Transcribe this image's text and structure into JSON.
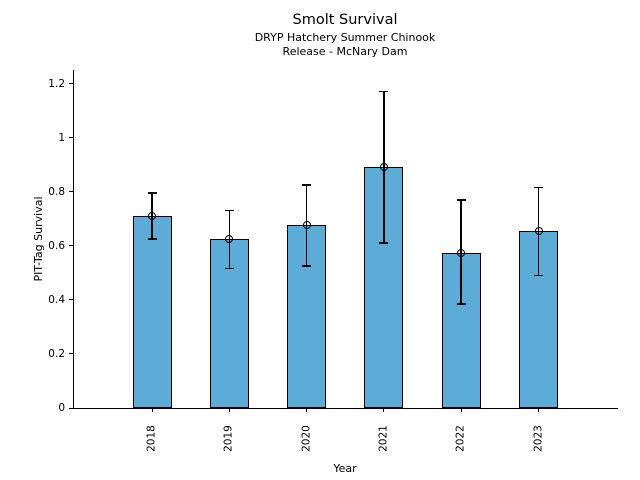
{
  "chart_data": {
    "type": "bar",
    "title": "Smolt Survival",
    "subtitle1": "DRYP Hatchery Summer Chinook",
    "subtitle2": "Release - McNary Dam",
    "xlabel": "Year",
    "ylabel": "PIT-Tag Survival",
    "categories": [
      "2018",
      "2019",
      "2020",
      "2021",
      "2022",
      "2023"
    ],
    "values": [
      0.71,
      0.625,
      0.675,
      0.89,
      0.575,
      0.655
    ],
    "error_low": [
      0.625,
      0.515,
      0.525,
      0.61,
      0.385,
      0.49
    ],
    "error_high": [
      0.795,
      0.73,
      0.825,
      1.17,
      0.77,
      0.815
    ],
    "yticks": [
      0,
      0.2,
      0.4,
      0.6,
      0.8,
      1.0,
      1.2
    ],
    "ytick_labels": [
      "0",
      "0.2",
      "0.4",
      "0.6",
      "0.8",
      "1",
      "1.2"
    ],
    "ylim": [
      0,
      1.25
    ],
    "grid": false,
    "legend": null,
    "bar_color": "#5DACD8",
    "bar_edge_color": "#000000",
    "error_color": "#000000",
    "marker": "open-circle",
    "background_color": "#ffffff"
  }
}
